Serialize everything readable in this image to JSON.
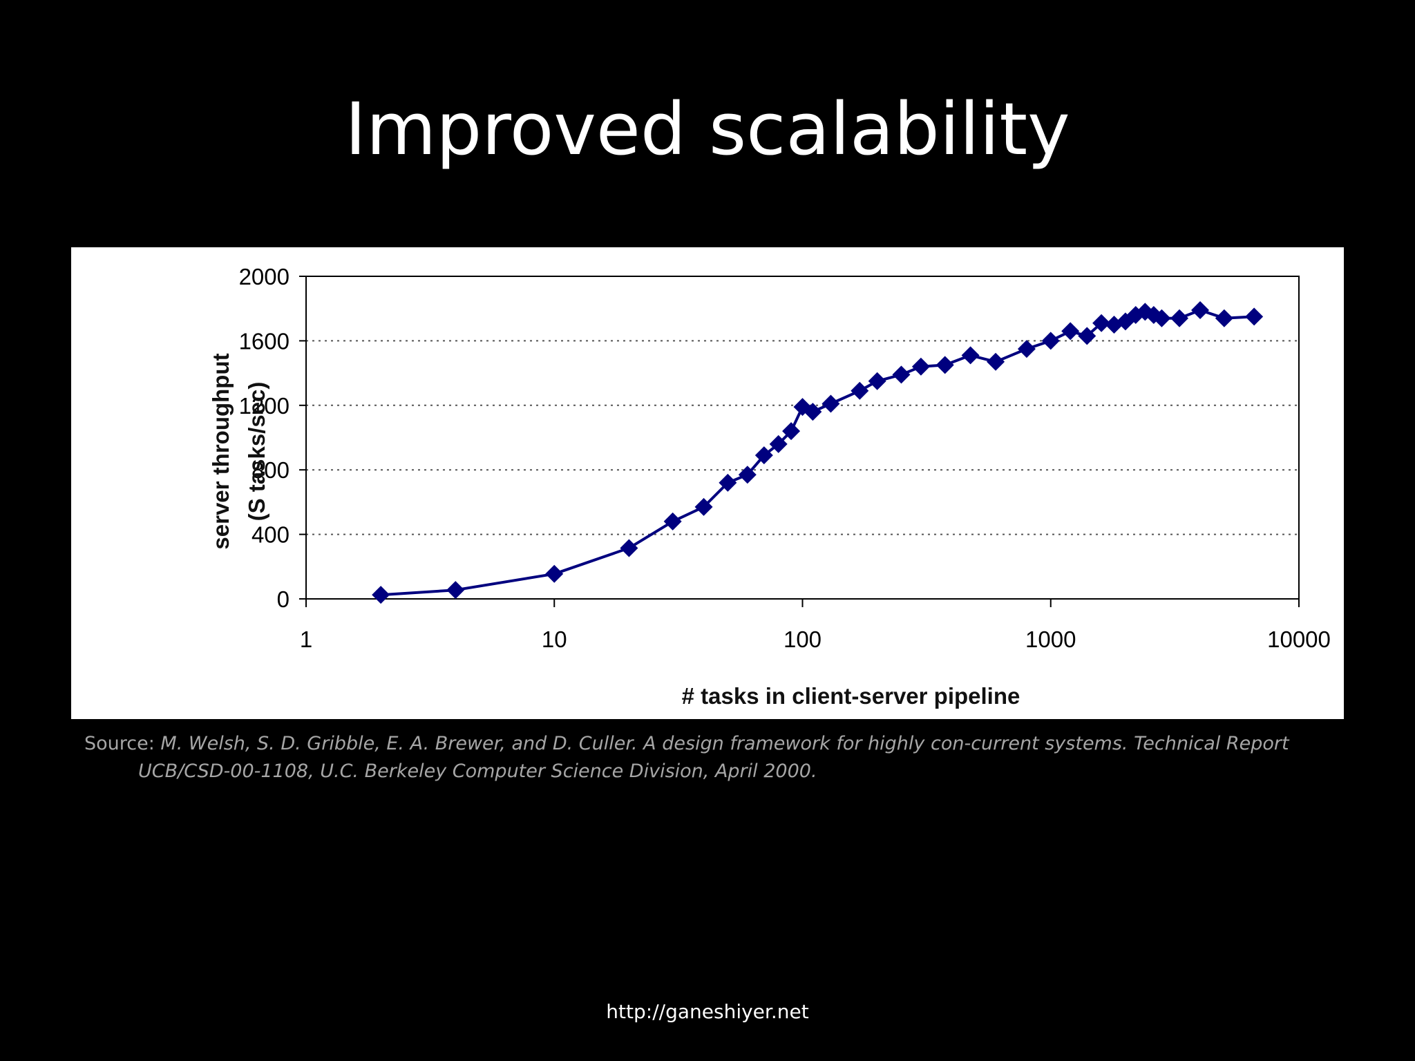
{
  "slide": {
    "title": "Improved scalability",
    "source_prefix": "Source: ",
    "source_citation": "M. Welsh, S. D. Gribble, E. A. Brewer, and D. Culler. A design framework for highly con-current systems. Technical Report UCB/CSD-00-1108, U.C. Berkeley Computer Science Division, April 2000.",
    "footer_url": "http://ganeshiyer.net"
  },
  "colors": {
    "background": "#000000",
    "title_text": "#ffffff",
    "source_text": "#a6a6a6",
    "series_color": "#00007f"
  },
  "chart_data": {
    "type": "line",
    "xlabel": "# tasks in client-server pipeline",
    "ylabel_line1": "server throughput",
    "ylabel_line2": "(S tasks/sec)",
    "xscale": "log",
    "xlim": [
      1,
      10000
    ],
    "ylim": [
      0,
      2000
    ],
    "x_ticks": [
      1,
      10,
      100,
      1000,
      10000
    ],
    "x_tick_labels": [
      "1",
      "10",
      "100",
      "1000",
      "10000"
    ],
    "y_ticks": [
      0,
      400,
      800,
      1200,
      1600,
      2000
    ],
    "y_tick_labels": [
      "0",
      "400",
      "800",
      "1200",
      "1600",
      "2000"
    ],
    "grid": "horizontal dotted",
    "legend": "none",
    "marker": "diamond",
    "series": [
      {
        "points": [
          [
            2,
            25
          ],
          [
            4,
            55
          ],
          [
            10,
            155
          ],
          [
            20,
            315
          ],
          [
            30,
            480
          ],
          [
            40,
            570
          ],
          [
            50,
            720
          ],
          [
            60,
            770
          ],
          [
            70,
            890
          ],
          [
            80,
            960
          ],
          [
            90,
            1040
          ],
          [
            100,
            1190
          ],
          [
            110,
            1160
          ],
          [
            130,
            1210
          ],
          [
            170,
            1290
          ],
          [
            200,
            1350
          ],
          [
            250,
            1390
          ],
          [
            300,
            1440
          ],
          [
            375,
            1450
          ],
          [
            475,
            1510
          ],
          [
            600,
            1470
          ],
          [
            800,
            1550
          ],
          [
            1000,
            1600
          ],
          [
            1200,
            1660
          ],
          [
            1400,
            1630
          ],
          [
            1600,
            1710
          ],
          [
            1800,
            1700
          ],
          [
            2000,
            1720
          ],
          [
            2200,
            1760
          ],
          [
            2400,
            1780
          ],
          [
            2600,
            1760
          ],
          [
            2800,
            1740
          ],
          [
            3300,
            1740
          ],
          [
            4000,
            1790
          ],
          [
            5000,
            1740
          ],
          [
            6600,
            1750
          ]
        ]
      }
    ]
  }
}
